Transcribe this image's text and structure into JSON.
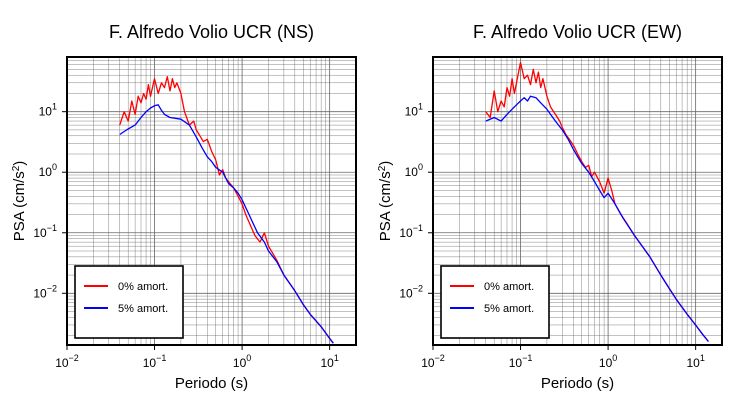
{
  "chart_data": [
    {
      "type": "line",
      "title": "F. Alfredo Volio UCR (NS)",
      "xlabel": "Periodo (s)",
      "ylabel": "PSA (cm/s²)",
      "x_scale": "log",
      "y_scale": "log",
      "xlim": [
        0.01,
        20
      ],
      "ylim": [
        0.0014,
        80
      ],
      "grid": true,
      "legend_position": "bottom-left",
      "x_ticks": [
        {
          "value": 0.01,
          "base": "10",
          "exp": "−2"
        },
        {
          "value": 0.1,
          "base": "10",
          "exp": "−1"
        },
        {
          "value": 1,
          "base": "10",
          "exp": "0"
        },
        {
          "value": 10,
          "base": "10",
          "exp": "1"
        }
      ],
      "y_ticks": [
        {
          "value": 0.01,
          "base": "10",
          "exp": "−2"
        },
        {
          "value": 0.1,
          "base": "10",
          "exp": "−1"
        },
        {
          "value": 1,
          "base": "10",
          "exp": "0"
        },
        {
          "value": 10,
          "base": "10",
          "exp": "1"
        }
      ],
      "series": [
        {
          "name": "0% amort.",
          "color": "#ff0000",
          "x": [
            0.04,
            0.045,
            0.05,
            0.055,
            0.06,
            0.065,
            0.07,
            0.075,
            0.08,
            0.085,
            0.09,
            0.1,
            0.11,
            0.12,
            0.13,
            0.14,
            0.15,
            0.16,
            0.17,
            0.18,
            0.2,
            0.22,
            0.25,
            0.28,
            0.3,
            0.33,
            0.36,
            0.4,
            0.45,
            0.5,
            0.55,
            0.6,
            0.65,
            0.7,
            0.8,
            0.9,
            1.0,
            1.1,
            1.2,
            1.4,
            1.6,
            1.8,
            2.0,
            2.5,
            3.0,
            4.0,
            5.0,
            6.0,
            7.0,
            8.0,
            10.0,
            11.0
          ],
          "y": [
            6,
            10,
            7,
            15,
            9,
            18,
            14,
            20,
            16,
            28,
            18,
            35,
            20,
            30,
            25,
            38,
            22,
            35,
            25,
            30,
            20,
            10,
            6,
            7,
            5,
            4,
            3.2,
            3.5,
            2.2,
            1.6,
            0.9,
            1.1,
            0.8,
            0.7,
            0.55,
            0.4,
            0.3,
            0.2,
            0.15,
            0.09,
            0.07,
            0.1,
            0.06,
            0.035,
            0.02,
            0.011,
            0.0065,
            0.0045,
            0.0035,
            0.0028,
            0.0018,
            0.0015
          ]
        },
        {
          "name": "5% amort.",
          "color": "#0000ff",
          "x": [
            0.04,
            0.05,
            0.06,
            0.07,
            0.08,
            0.09,
            0.1,
            0.11,
            0.12,
            0.13,
            0.15,
            0.17,
            0.2,
            0.25,
            0.3,
            0.35,
            0.4,
            0.45,
            0.5,
            0.6,
            0.7,
            0.8,
            0.9,
            1.0,
            1.2,
            1.5,
            1.8,
            2.0,
            2.5,
            3.0,
            4.0,
            5.0,
            6.0,
            7.0,
            8.0,
            10.0,
            11.0
          ],
          "y": [
            4.2,
            5.2,
            6,
            8,
            10,
            11.5,
            12.5,
            13,
            10.5,
            9,
            8,
            7.8,
            7.5,
            6,
            3.8,
            2.5,
            1.8,
            1.5,
            1.2,
            1.0,
            0.65,
            0.55,
            0.45,
            0.35,
            0.2,
            0.1,
            0.07,
            0.05,
            0.033,
            0.02,
            0.011,
            0.0065,
            0.0045,
            0.0035,
            0.0028,
            0.0018,
            0.0015
          ]
        }
      ]
    },
    {
      "type": "line",
      "title": "F. Alfredo Volio UCR (EW)",
      "xlabel": "Periodo (s)",
      "ylabel": "PSA (cm/s²)",
      "x_scale": "log",
      "y_scale": "log",
      "xlim": [
        0.01,
        20
      ],
      "ylim": [
        0.0014,
        80
      ],
      "grid": true,
      "legend_position": "bottom-left",
      "x_ticks": [
        {
          "value": 0.01,
          "base": "10",
          "exp": "−2"
        },
        {
          "value": 0.1,
          "base": "10",
          "exp": "−1"
        },
        {
          "value": 1,
          "base": "10",
          "exp": "0"
        },
        {
          "value": 10,
          "base": "10",
          "exp": "1"
        }
      ],
      "y_ticks": [
        {
          "value": 0.01,
          "base": "10",
          "exp": "−2"
        },
        {
          "value": 0.1,
          "base": "10",
          "exp": "−1"
        },
        {
          "value": 1,
          "base": "10",
          "exp": "0"
        },
        {
          "value": 10,
          "base": "10",
          "exp": "1"
        }
      ],
      "series": [
        {
          "name": "0% amort.",
          "color": "#ff0000",
          "x": [
            0.04,
            0.045,
            0.05,
            0.055,
            0.06,
            0.065,
            0.07,
            0.075,
            0.08,
            0.085,
            0.09,
            0.1,
            0.11,
            0.12,
            0.13,
            0.14,
            0.15,
            0.16,
            0.17,
            0.18,
            0.2,
            0.22,
            0.25,
            0.28,
            0.3,
            0.33,
            0.36,
            0.4,
            0.45,
            0.5,
            0.55,
            0.6,
            0.65,
            0.7,
            0.8,
            0.9,
            1.0,
            1.1,
            1.2,
            1.4,
            1.6,
            2.0,
            3.0,
            4.0,
            5.0,
            6.0,
            8.0,
            10.0,
            12.0,
            14.0
          ],
          "y": [
            10,
            8,
            22,
            10,
            15,
            12,
            25,
            18,
            35,
            20,
            30,
            65,
            35,
            40,
            28,
            50,
            30,
            45,
            25,
            35,
            18,
            12,
            9,
            7,
            5.5,
            4.2,
            3.5,
            2.8,
            2.0,
            1.5,
            1.2,
            1.3,
            0.85,
            1.0,
            0.7,
            0.45,
            0.8,
            0.5,
            0.3,
            0.2,
            0.15,
            0.09,
            0.04,
            0.02,
            0.012,
            0.008,
            0.0045,
            0.003,
            0.0021,
            0.0016
          ]
        },
        {
          "name": "5% amort.",
          "color": "#0000ff",
          "x": [
            0.04,
            0.05,
            0.06,
            0.07,
            0.08,
            0.09,
            0.1,
            0.11,
            0.12,
            0.13,
            0.15,
            0.17,
            0.2,
            0.25,
            0.3,
            0.35,
            0.4,
            0.45,
            0.5,
            0.6,
            0.7,
            0.8,
            0.9,
            1.0,
            1.2,
            1.5,
            2.0,
            3.0,
            4.0,
            5.0,
            6.0,
            8.0,
            10.0,
            12.0,
            14.0
          ],
          "y": [
            7,
            8,
            7,
            9,
            11,
            13,
            15,
            17,
            15,
            18,
            17,
            14,
            11,
            7,
            5,
            3.5,
            2.4,
            1.8,
            1.4,
            1.0,
            0.7,
            0.5,
            0.38,
            0.45,
            0.3,
            0.17,
            0.09,
            0.04,
            0.02,
            0.012,
            0.008,
            0.0045,
            0.003,
            0.0021,
            0.0016
          ]
        }
      ]
    }
  ]
}
